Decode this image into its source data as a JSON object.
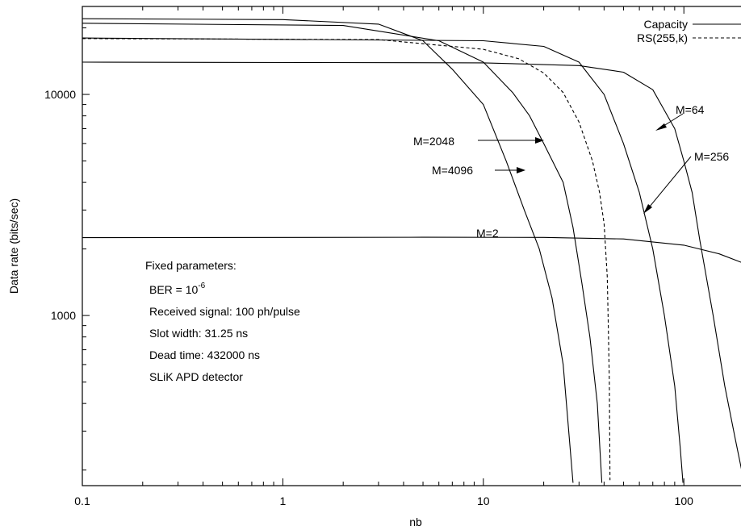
{
  "chart_data": {
    "type": "line",
    "xlabel": "nb",
    "ylabel": "Data rate (bits/sec)",
    "xscale": "log",
    "yscale": "log",
    "xlim": [
      0.1,
      200
    ],
    "ylim": [
      170,
      25000
    ],
    "grid": false,
    "legend_position": "top-right",
    "x_ticks": [
      {
        "value": 0.1,
        "label": "0.1"
      },
      {
        "value": 1,
        "label": "1"
      },
      {
        "value": 10,
        "label": "10"
      },
      {
        "value": 100,
        "label": "100"
      }
    ],
    "y_ticks": [
      {
        "value": 1000,
        "label": "1000"
      },
      {
        "value": 10000,
        "label": "10000"
      }
    ],
    "legend": [
      {
        "label": "Capacity",
        "style": "solid"
      },
      {
        "label": "RS(255,k)",
        "style": "dashed"
      }
    ],
    "series": [
      {
        "name": "M=2",
        "style": "solid",
        "points": [
          [
            0.1,
            2250
          ],
          [
            5,
            2260
          ],
          [
            20,
            2255
          ],
          [
            50,
            2220
          ],
          [
            100,
            2080
          ],
          [
            150,
            1900
          ],
          [
            200,
            1720
          ]
        ]
      },
      {
        "name": "M=64",
        "style": "solid",
        "points": [
          [
            0.1,
            14000
          ],
          [
            10,
            13900
          ],
          [
            30,
            13500
          ],
          [
            50,
            12600
          ],
          [
            70,
            10500
          ],
          [
            90,
            7000
          ],
          [
            100,
            5000
          ],
          [
            110,
            3600
          ],
          [
            120,
            2200
          ],
          [
            140,
            1000
          ],
          [
            160,
            480
          ],
          [
            180,
            280
          ],
          [
            200,
            175
          ]
        ]
      },
      {
        "name": "M=256",
        "style": "solid",
        "points": [
          [
            0.1,
            18000
          ],
          [
            10,
            17500
          ],
          [
            20,
            16500
          ],
          [
            30,
            14000
          ],
          [
            40,
            10000
          ],
          [
            50,
            6000
          ],
          [
            60,
            3600
          ],
          [
            70,
            2000
          ],
          [
            80,
            1000
          ],
          [
            90,
            480
          ],
          [
            96,
            250
          ],
          [
            99,
            175
          ]
        ]
      },
      {
        "name": "RS(255,k)",
        "style": "dashed",
        "points": [
          [
            0.1,
            17900
          ],
          [
            3,
            17700
          ],
          [
            10,
            16000
          ],
          [
            15,
            14500
          ],
          [
            20,
            12500
          ],
          [
            25,
            10200
          ],
          [
            30,
            7500
          ],
          [
            35,
            5000
          ],
          [
            38,
            3600
          ],
          [
            40,
            2600
          ],
          [
            41.5,
            1500
          ],
          [
            42,
            900
          ],
          [
            42.5,
            500
          ],
          [
            42.8,
            180
          ]
        ]
      },
      {
        "name": "M=2048",
        "style": "solid",
        "points": [
          [
            0.1,
            21000
          ],
          [
            2,
            20500
          ],
          [
            6,
            17500
          ],
          [
            10,
            14000
          ],
          [
            14,
            10200
          ],
          [
            17,
            8000
          ],
          [
            20,
            6000
          ],
          [
            25,
            4000
          ],
          [
            28,
            2500
          ],
          [
            31,
            1400
          ],
          [
            34,
            800
          ],
          [
            37,
            400
          ],
          [
            39,
            175
          ]
        ]
      },
      {
        "name": "M=4096",
        "style": "solid",
        "points": [
          [
            0.1,
            22000
          ],
          [
            1,
            21800
          ],
          [
            3,
            20800
          ],
          [
            5,
            17500
          ],
          [
            7,
            13000
          ],
          [
            10,
            9000
          ],
          [
            13,
            5000
          ],
          [
            16,
            3000
          ],
          [
            19,
            2000
          ],
          [
            22,
            1200
          ],
          [
            25,
            600
          ],
          [
            28,
            175
          ]
        ]
      }
    ],
    "annotations": {
      "m64": "M=64",
      "m256": "M=256",
      "m2048": "M=2048",
      "m4096": "M=4096",
      "m2": "M=2"
    },
    "parameters": {
      "heading": "Fixed parameters:",
      "ber_prefix": "BER = 10",
      "ber_exponent": "-6",
      "signal": "Received signal: 100 ph/pulse",
      "slot": "Slot width: 31.25 ns",
      "dead_time": "Dead time: 432000 ns",
      "detector": "SLiK APD detector"
    }
  }
}
